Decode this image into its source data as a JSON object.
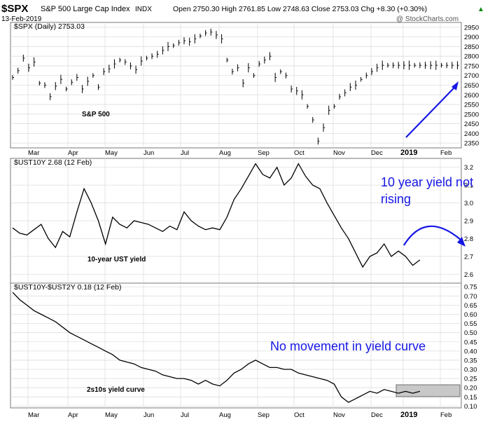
{
  "header": {
    "symbol": "$SPX",
    "name": "S&P 500 Large Cap Index",
    "exchange": "INDX",
    "date": "13-Feb-2019",
    "quote": "Open 2750.30  High 2761.85  Low 2748.63  Close 2753.03  Chg +8.30 (+0.30%)",
    "watermark": "@ StockCharts.com",
    "up_arrow": "▲"
  },
  "colors": {
    "price": "#000000",
    "annotation": "#1616e6",
    "grid": "#dedede",
    "highlight_fill": "#c8c8c8"
  },
  "months": [
    "Mar",
    "Apr",
    "May",
    "Jun",
    "Jul",
    "Aug",
    "Sep",
    "Oct",
    "Nov",
    "Dec",
    "2019",
    "Feb"
  ],
  "chart_data": [
    {
      "type": "bar",
      "title": "$SPX (Daily) 2753.03",
      "label": "S&P 500",
      "series_name": "$SPX",
      "ylim": [
        2325,
        2975
      ],
      "y_ticks": [
        2350,
        2400,
        2450,
        2500,
        2550,
        2600,
        2650,
        2700,
        2750,
        2800,
        2850,
        2900,
        2950
      ],
      "x_ticks": [
        "Mar",
        "Apr",
        "May",
        "Jun",
        "Jul",
        "Aug",
        "Sep",
        "Oct",
        "Nov",
        "Dec",
        "2019",
        "Feb"
      ],
      "x": [
        0,
        3,
        6,
        9,
        12,
        15,
        18,
        21,
        24,
        27,
        30,
        33,
        36,
        39,
        42,
        45,
        48,
        51,
        54,
        57,
        60,
        63,
        66,
        69,
        72,
        75,
        78,
        81,
        84,
        87,
        90,
        93,
        96,
        99,
        102,
        105,
        108,
        111,
        114,
        117,
        120,
        123,
        126,
        129,
        132,
        135,
        138,
        141,
        144,
        147,
        150,
        153,
        156,
        159,
        162,
        165,
        168,
        171,
        174,
        177,
        180,
        183,
        186,
        189,
        192,
        195,
        198,
        201,
        204,
        207,
        210,
        213,
        216,
        219,
        222,
        225,
        228,
        231,
        234,
        237,
        240,
        243,
        246,
        249
      ],
      "values": [
        2690,
        2725,
        2790,
        2740,
        2770,
        2660,
        2650,
        2590,
        2645,
        2680,
        2630,
        2665,
        2690,
        2630,
        2670,
        2700,
        2640,
        2720,
        2735,
        2760,
        2780,
        2770,
        2750,
        2730,
        2775,
        2790,
        2800,
        2810,
        2830,
        2850,
        2855,
        2870,
        2880,
        2875,
        2890,
        2905,
        2920,
        2925,
        2910,
        2890,
        2780,
        2720,
        2740,
        2660,
        2740,
        2700,
        2760,
        2780,
        2800,
        2690,
        2720,
        2700,
        2630,
        2620,
        2600,
        2540,
        2470,
        2360,
        2430,
        2520,
        2540,
        2590,
        2610,
        2640,
        2650,
        2680,
        2700,
        2720,
        2740,
        2753,
        2753,
        2753,
        2753,
        2753,
        2753,
        2753,
        2753,
        2753,
        2753,
        2753,
        2753,
        2753,
        2753,
        2753
      ],
      "grid": true
    },
    {
      "type": "line",
      "title": "$UST10Y 2.68 (12 Feb)",
      "label": "10-year UST yield",
      "series_name": "$UST10Y",
      "annotation": "10 year yield not rising",
      "ylim": [
        2.55,
        3.25
      ],
      "y_ticks": [
        2.6,
        2.7,
        2.8,
        2.9,
        3.0,
        3.1,
        3.2
      ],
      "x_ticks": [
        "Mar",
        "Apr",
        "May",
        "Jun",
        "Jul",
        "Aug",
        "Sep",
        "Oct",
        "Nov",
        "Dec",
        "2019",
        "Feb"
      ],
      "x": [
        0,
        4,
        8,
        12,
        16,
        20,
        24,
        28,
        32,
        36,
        40,
        44,
        48,
        52,
        56,
        60,
        64,
        68,
        72,
        76,
        80,
        84,
        88,
        92,
        96,
        100,
        104,
        108,
        112,
        116,
        120,
        124,
        128,
        132,
        136,
        140,
        144,
        148,
        152,
        156,
        160,
        164,
        168,
        172,
        176,
        180,
        184,
        188,
        192,
        196,
        200,
        204,
        208,
        212,
        216,
        220,
        224,
        228
      ],
      "values": [
        2.86,
        2.83,
        2.82,
        2.85,
        2.88,
        2.8,
        2.75,
        2.84,
        2.81,
        2.95,
        3.08,
        3.0,
        2.9,
        2.77,
        2.92,
        2.88,
        2.86,
        2.9,
        2.89,
        2.88,
        2.86,
        2.84,
        2.87,
        2.85,
        2.95,
        2.9,
        2.87,
        2.85,
        2.86,
        2.85,
        2.92,
        3.02,
        3.08,
        3.15,
        3.22,
        3.16,
        3.14,
        3.2,
        3.1,
        3.14,
        3.22,
        3.15,
        3.1,
        3.08,
        3.0,
        2.93,
        2.86,
        2.8,
        2.72,
        2.64,
        2.7,
        2.72,
        2.77,
        2.7,
        2.73,
        2.7,
        2.65,
        2.68
      ],
      "grid": true
    },
    {
      "type": "line",
      "title": "$UST10Y-$UST2Y 0.18 (12 Feb)",
      "label": "2s10s yield curve",
      "series_name": "$UST10Y-$UST2Y",
      "annotation": "No movement in yield curve",
      "ylim": [
        0.09,
        0.77
      ],
      "y_ticks": [
        0.1,
        0.15,
        0.2,
        0.25,
        0.3,
        0.35,
        0.4,
        0.45,
        0.5,
        0.55,
        0.6,
        0.65,
        0.7,
        0.75
      ],
      "x_ticks": [
        "Mar",
        "Apr",
        "May",
        "Jun",
        "Jul",
        "Aug",
        "Sep",
        "Oct",
        "Nov",
        "Dec",
        "2019",
        "Feb"
      ],
      "x": [
        0,
        4,
        8,
        12,
        16,
        20,
        24,
        28,
        32,
        36,
        40,
        44,
        48,
        52,
        56,
        60,
        64,
        68,
        72,
        76,
        80,
        84,
        88,
        92,
        96,
        100,
        104,
        108,
        112,
        116,
        120,
        124,
        128,
        132,
        136,
        140,
        144,
        148,
        152,
        156,
        160,
        164,
        168,
        172,
        176,
        180,
        184,
        188,
        192,
        196,
        200,
        204,
        208,
        212,
        216,
        220,
        224,
        228
      ],
      "values": [
        0.72,
        0.68,
        0.65,
        0.62,
        0.6,
        0.58,
        0.56,
        0.53,
        0.5,
        0.48,
        0.46,
        0.44,
        0.42,
        0.4,
        0.38,
        0.35,
        0.34,
        0.33,
        0.31,
        0.3,
        0.29,
        0.27,
        0.26,
        0.25,
        0.25,
        0.24,
        0.22,
        0.24,
        0.22,
        0.21,
        0.24,
        0.28,
        0.3,
        0.33,
        0.35,
        0.33,
        0.31,
        0.31,
        0.3,
        0.3,
        0.28,
        0.27,
        0.26,
        0.25,
        0.24,
        0.22,
        0.15,
        0.12,
        0.14,
        0.16,
        0.18,
        0.17,
        0.19,
        0.18,
        0.17,
        0.18,
        0.17,
        0.18
      ],
      "grid": true
    }
  ]
}
